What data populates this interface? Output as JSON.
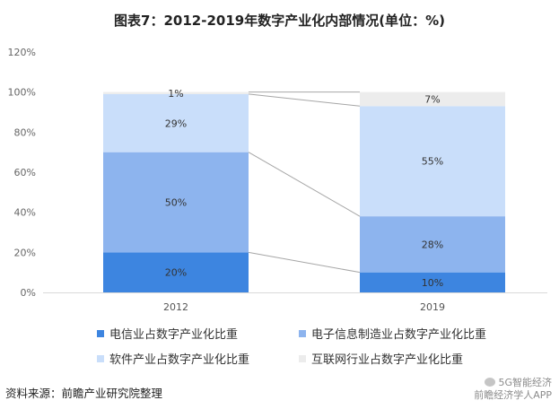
{
  "title": "图表7：2012-2019年数字产业化内部情况(单位：%)",
  "source": "资料来源：前瞻产业研究院整理",
  "corner": {
    "line1": "5G智能经济",
    "line2": "前瞻经济学人APP"
  },
  "chart_data": {
    "type": "bar",
    "stacked": true,
    "categories": [
      "2012",
      "2019"
    ],
    "ylim": [
      0,
      120
    ],
    "yticks": [
      0,
      20,
      40,
      60,
      80,
      100,
      120
    ],
    "ytick_labels": [
      "0%",
      "20%",
      "40%",
      "60%",
      "80%",
      "100%",
      "120%"
    ],
    "series": [
      {
        "name": "电信业占数字产业化比重",
        "values": [
          20,
          10
        ],
        "labels": [
          "20%",
          "10%"
        ],
        "color": "#3d85e0"
      },
      {
        "name": "电子信息制造业占数字产业化比重",
        "values": [
          50,
          28
        ],
        "labels": [
          "50%",
          "28%"
        ],
        "color": "#8db4ee"
      },
      {
        "name": "软件产业占数字产业化比重",
        "values": [
          29,
          55
        ],
        "labels": [
          "29%",
          "55%"
        ],
        "color": "#c9defa"
      },
      {
        "name": "互联网行业占数字产业化比重",
        "values": [
          1,
          7
        ],
        "labels": [
          "1%",
          "7%"
        ],
        "color": "#ececec"
      }
    ],
    "grid": false,
    "legend_position": "bottom"
  }
}
